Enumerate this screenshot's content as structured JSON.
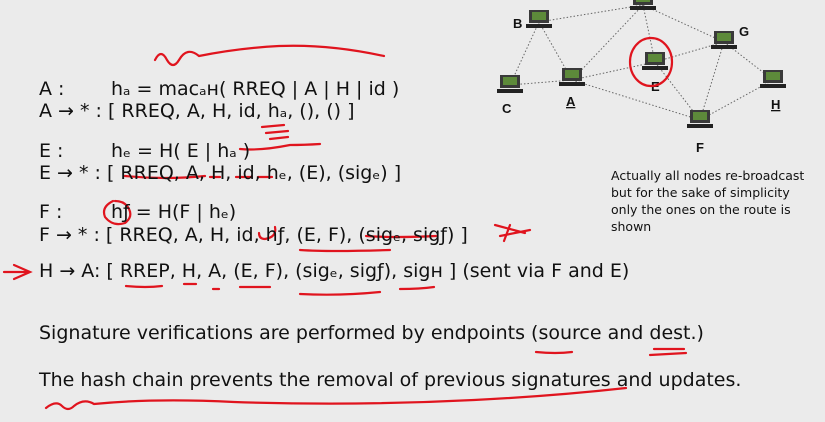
{
  "slide": {
    "lines": {
      "a_label": "A :",
      "a_expr": "hₐ = macₐʜ( RREQ | A | H | id )",
      "a_fwd": "A → * : [ RREQ, A, H, id, hₐ, (), () ]",
      "e_label": "E :",
      "e_expr": "hₑ = H( E | hₐ )",
      "e_fwd": "E → * : [ RREQ, A, H, id, hₑ, (E), (sigₑ) ]",
      "f_label": "F :",
      "f_expr": "hƒ = H(F | hₑ)",
      "f_fwd": "F → * : [ RREQ, A, H, id, hƒ, (E, F), (sigₑ, sigƒ) ]",
      "h_reply": "H → A: [ RREP, H, A, (E, F), (sigₑ, sigƒ), sigʜ ]  (sent via F and E)"
    },
    "note": "Actually all nodes re-broadcast but for the sake of simplicity only the ones on the route is shown",
    "statements": [
      "Signature verifications are performed by endpoints (source and dest.)",
      "The hash chain prevents the removal of previous signatures and updates."
    ],
    "network": {
      "nodes": [
        "B",
        "C",
        "A",
        "E",
        "G",
        "F",
        "H"
      ],
      "underlined": [
        "A",
        "H"
      ]
    },
    "colors": {
      "ink": "#e0141e",
      "text": "#111111"
    }
  }
}
